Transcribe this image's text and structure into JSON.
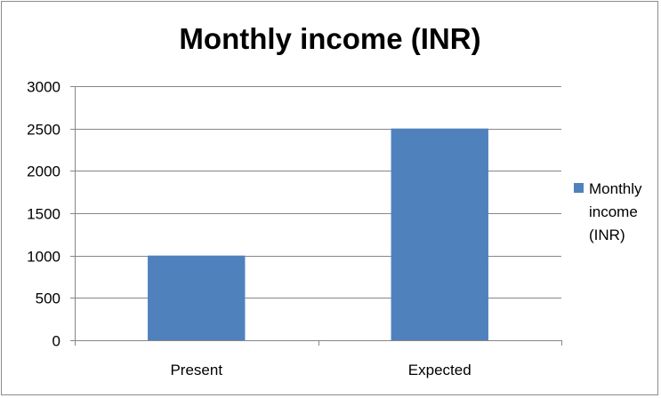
{
  "chart_data": {
    "type": "bar",
    "title": "Monthly income (INR)",
    "categories": [
      "Present",
      "Expected"
    ],
    "series": [
      {
        "name": "Monthly income (INR)",
        "values": [
          1000,
          2500
        ]
      }
    ],
    "ylim": [
      0,
      3000
    ],
    "yticks": [
      0,
      500,
      1000,
      1500,
      2000,
      2500,
      3000
    ],
    "ytick_labels": [
      "0",
      "500",
      "1000",
      "1500",
      "2000",
      "2500",
      "3000"
    ],
    "legend_position": "right",
    "legend_lines": [
      "Monthly",
      "income",
      "(INR)"
    ],
    "grid": true,
    "bar_color": "#4f81bd"
  }
}
